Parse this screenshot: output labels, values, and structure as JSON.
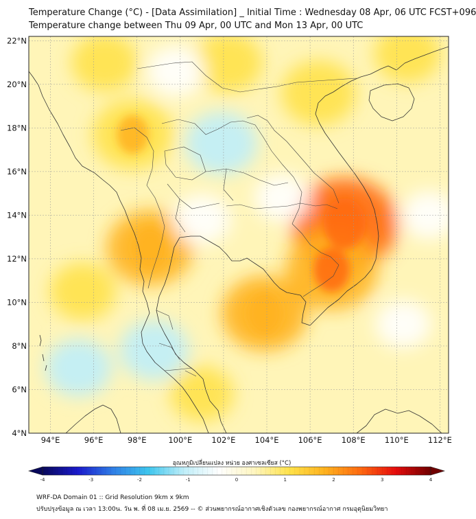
{
  "header": {
    "title_line1": "Temperature Change (°C) - [Data Assimilation] _ Initial Time : Wednesday 08 Apr, 06 UTC FCST+096",
    "title_line2": "Temperature change between Thu 09 Apr, 00 UTC and Mon 13 Apr, 00 UTC"
  },
  "map": {
    "lat_labels": [
      "22°N",
      "20°N",
      "18°N",
      "16°N",
      "14°N",
      "12°N",
      "10°N",
      "8°N",
      "6°N",
      "4°N"
    ],
    "lon_labels": [
      "94°E",
      "96°E",
      "98°E",
      "100°E",
      "102°E",
      "104°E",
      "106°E",
      "108°E",
      "110°E",
      "112°E"
    ],
    "lat_values": [
      22,
      20,
      18,
      16,
      14,
      12,
      10,
      8,
      6,
      4
    ],
    "lon_values": [
      94,
      96,
      98,
      100,
      102,
      104,
      106,
      108,
      110,
      112
    ],
    "extent": {
      "lon_min": 93.0,
      "lon_max": 112.4,
      "lat_min": 4.0,
      "lat_max": 22.2
    },
    "features": [
      {
        "type": "warm",
        "lon": 96.5,
        "lat": 21.0,
        "strength": 0.9
      },
      {
        "type": "warm",
        "lon": 102.2,
        "lat": 21.0,
        "strength": 1.0
      },
      {
        "type": "warm",
        "lon": 106.4,
        "lat": 19.6,
        "strength": 1.2
      },
      {
        "type": "warm",
        "lon": 110.5,
        "lat": 21.4,
        "strength": 0.9
      },
      {
        "type": "warm",
        "lon": 97.8,
        "lat": 17.7,
        "strength": 1.4
      },
      {
        "type": "warm",
        "lon": 107.6,
        "lat": 13.6,
        "strength": 2.3
      },
      {
        "type": "warm",
        "lon": 107.0,
        "lat": 11.5,
        "strength": 1.8
      },
      {
        "type": "warm",
        "lon": 98.6,
        "lat": 12.5,
        "strength": 1.6
      },
      {
        "type": "warm",
        "lon": 103.9,
        "lat": 9.5,
        "strength": 1.6
      },
      {
        "type": "warm",
        "lon": 95.5,
        "lat": 10.5,
        "strength": 0.9
      },
      {
        "type": "warm",
        "lon": 101.0,
        "lat": 5.8,
        "strength": 0.8
      },
      {
        "type": "cool",
        "lon": 101.9,
        "lat": 17.3,
        "strength": -1.1
      },
      {
        "type": "cool",
        "lon": 98.8,
        "lat": 7.8,
        "strength": -1.0
      },
      {
        "type": "cool",
        "lon": 95.3,
        "lat": 7.0,
        "strength": -0.9
      },
      {
        "type": "cool",
        "lon": 101.0,
        "lat": 13.8,
        "strength": -0.6
      },
      {
        "type": "cool",
        "lon": 99.8,
        "lat": 20.6,
        "strength": -0.6
      },
      {
        "type": "cool",
        "lon": 110.3,
        "lat": 9.0,
        "strength": -0.5
      },
      {
        "type": "cool",
        "lon": 104.7,
        "lat": 14.8,
        "strength": -0.5
      },
      {
        "type": "cool",
        "lon": 111.5,
        "lat": 14.0,
        "strength": -0.5
      }
    ]
  },
  "colorbar": {
    "title": "อุณหภูมิเปลี่ยนแปลง หน่วย องศาเซลเซียส (°C)",
    "ticks": [
      "-4",
      "-3",
      "-2",
      "-1",
      "0",
      "1",
      "2",
      "3",
      "4"
    ],
    "tick_values": [
      -4,
      -3,
      -2,
      -1,
      0,
      1,
      2,
      3,
      4
    ],
    "min": -4,
    "max": 4,
    "colors": [
      "#08085a",
      "#1a1acc",
      "#2f7fe6",
      "#3ec6ee",
      "#bfeef9",
      "#ffffff",
      "#fff6c0",
      "#ffe24a",
      "#ffb21e",
      "#ff6a10",
      "#e60c0c",
      "#700000"
    ]
  },
  "footer": {
    "line1": "WRF-DA Domain 01 :: Grid Resolution 9km x 9km",
    "line2": "ปรับปรุงข้อมูล ณ เวลา 13:00น. วัน พ. ที่ 08 เม.ย. 2569 -- © ส่วนพยากรณ์อากาศเชิงตัวเลข กองพยากรณ์อากาศ กรมอุตุนิยมวิทยา"
  }
}
